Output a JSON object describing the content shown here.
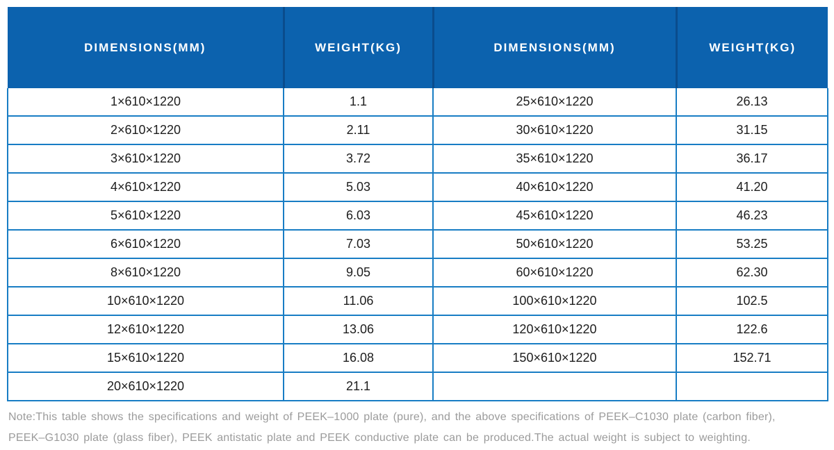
{
  "table": {
    "headers": [
      "DIMENSIONS(MM)",
      "WEIGHT(KG)",
      "DIMENSIONS(MM)",
      "WEIGHT(KG)"
    ],
    "rows": [
      [
        "1×610×1220",
        "1.1",
        "25×610×1220",
        "26.13"
      ],
      [
        "2×610×1220",
        "2.11",
        "30×610×1220",
        "31.15"
      ],
      [
        "3×610×1220",
        "3.72",
        "35×610×1220",
        "36.17"
      ],
      [
        "4×610×1220",
        "5.03",
        "40×610×1220",
        "41.20"
      ],
      [
        "5×610×1220",
        "6.03",
        "45×610×1220",
        "46.23"
      ],
      [
        "6×610×1220",
        "7.03",
        "50×610×1220",
        "53.25"
      ],
      [
        "8×610×1220",
        "9.05",
        "60×610×1220",
        "62.30"
      ],
      [
        "10×610×1220",
        "11.06",
        "100×610×1220",
        "102.5"
      ],
      [
        "12×610×1220",
        "13.06",
        "120×610×1220",
        "122.6"
      ],
      [
        "15×610×1220",
        "16.08",
        "150×610×1220",
        "152.71"
      ],
      [
        "20×610×1220",
        "21.1",
        "",
        ""
      ]
    ]
  },
  "note": {
    "line1": "Note:This table shows the specifications and weight of PEEK–1000 plate (pure), and the above specifications of PEEK–C1030 plate (carbon fiber),",
    "line2": "PEEK–G1030 plate (glass fiber), PEEK antistatic plate and PEEK conductive plate can be produced.The actual weight is subject to weighting."
  },
  "colors": {
    "header_bg": "#0c62ae",
    "header_divider": "#0a4c8d",
    "grid_blue": "#187dc4",
    "cell_text": "#1d1d1d",
    "note_gray": "#9b9b9b"
  }
}
